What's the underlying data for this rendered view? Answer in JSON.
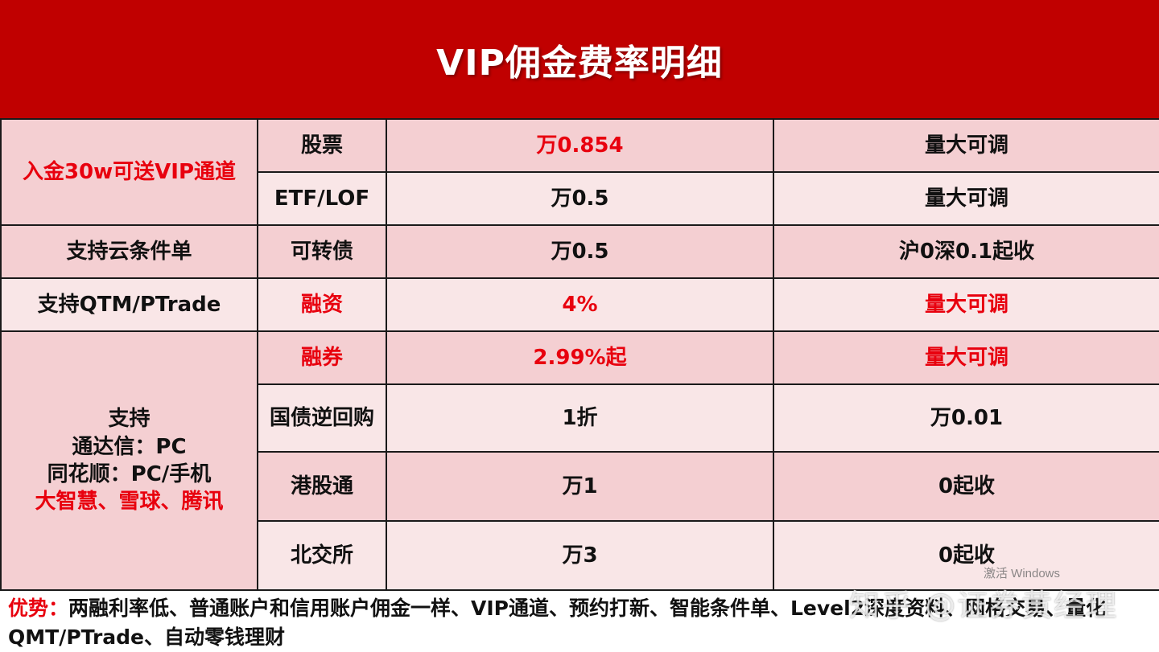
{
  "title": "VIP佣金费率明细",
  "rows": [
    {
      "item": "股票",
      "rate": "万0.854",
      "note": "量大可调"
    },
    {
      "item": "ETF/LOF",
      "rate": "万0.5",
      "note": "量大可调"
    },
    {
      "item": "可转债",
      "rate": "万0.5",
      "note": "沪0深0.1起收"
    },
    {
      "item": "融资",
      "rate": "4%",
      "note": "量大可调"
    },
    {
      "item": "融券",
      "rate": "2.99%起",
      "note": "量大可调"
    },
    {
      "item": "国债逆回购",
      "rate": "1折",
      "note": "万0.01"
    },
    {
      "item": "港股通",
      "rate": "万1",
      "note": "0起收"
    },
    {
      "item": "北交所",
      "rate": "万3",
      "note": "0起收"
    }
  ],
  "features": {
    "deposit_vip": "入金30w可送VIP通道",
    "cloud_order": "支持云条件单",
    "qtm_ptrade": "支持QTM/PTrade",
    "support_title": "支持",
    "tdx": "通达信：PC",
    "ths": "同花顺：PC/手机",
    "others": "大智慧、雪球、腾讯"
  },
  "footer": {
    "label": "优势：",
    "text": "两融利率低、普通账户和信用账户佣金一样、VIP通道、预约打新、智能条件单、Level2深度资料、网格交易、量化QMT/PTrade、自动零钱理财"
  },
  "watermark": "知乎 @证券黄经理",
  "activate_text": "激活 Windows",
  "colors": {
    "header_bg": "#c00000",
    "accent_red": "#e8000e",
    "row_dark": "#f4cfd2",
    "row_light": "#f9e6e7"
  }
}
